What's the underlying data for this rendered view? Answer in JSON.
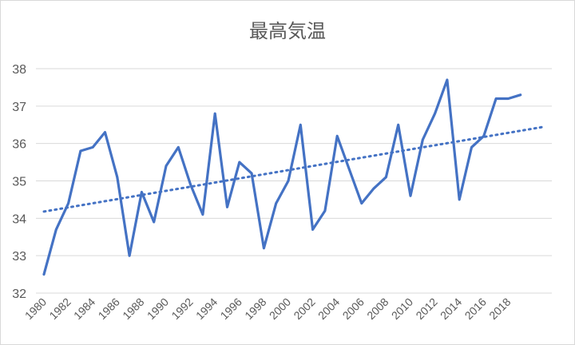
{
  "chart_data": {
    "type": "line",
    "title": "最高気温",
    "xlabel": "",
    "ylabel": "",
    "ylim": [
      32,
      38
    ],
    "y_ticks": [
      "32",
      "33",
      "34",
      "35",
      "36",
      "37",
      "38"
    ],
    "x_tick_labels": [
      "1980",
      "1982",
      "1984",
      "1986",
      "1988",
      "1990",
      "1992",
      "1994",
      "1996",
      "1998",
      "2000",
      "2002",
      "2004",
      "2006",
      "2008",
      "2010",
      "2012",
      "2014",
      "2016",
      "2018"
    ],
    "grid": "horizontal",
    "legend": "none",
    "x": [
      1980,
      1981,
      1982,
      1983,
      1984,
      1985,
      1986,
      1987,
      1988,
      1989,
      1990,
      1991,
      1992,
      1993,
      1994,
      1995,
      1996,
      1997,
      1998,
      1999,
      2000,
      2001,
      2002,
      2003,
      2004,
      2005,
      2006,
      2007,
      2008,
      2009,
      2010,
      2011,
      2012,
      2013,
      2014,
      2015,
      2016,
      2017,
      2018,
      2019
    ],
    "series": [
      {
        "values": [
          32.5,
          33.7,
          34.4,
          35.8,
          35.9,
          36.3,
          35.1,
          33.0,
          34.7,
          33.9,
          35.4,
          35.9,
          34.9,
          34.1,
          36.8,
          34.3,
          35.5,
          35.2,
          33.2,
          34.4,
          35.0,
          36.5,
          33.7,
          34.2,
          36.2,
          35.3,
          34.4,
          34.8,
          35.1,
          36.5,
          34.6,
          36.1,
          36.8,
          37.7,
          34.5,
          35.9,
          36.2,
          37.2,
          37.2,
          37.3
        ],
        "color": "#4472c4",
        "style": "solid"
      },
      {
        "start": 34.18,
        "end": 36.45,
        "color": "#4472c4",
        "style": "dotted"
      }
    ]
  }
}
